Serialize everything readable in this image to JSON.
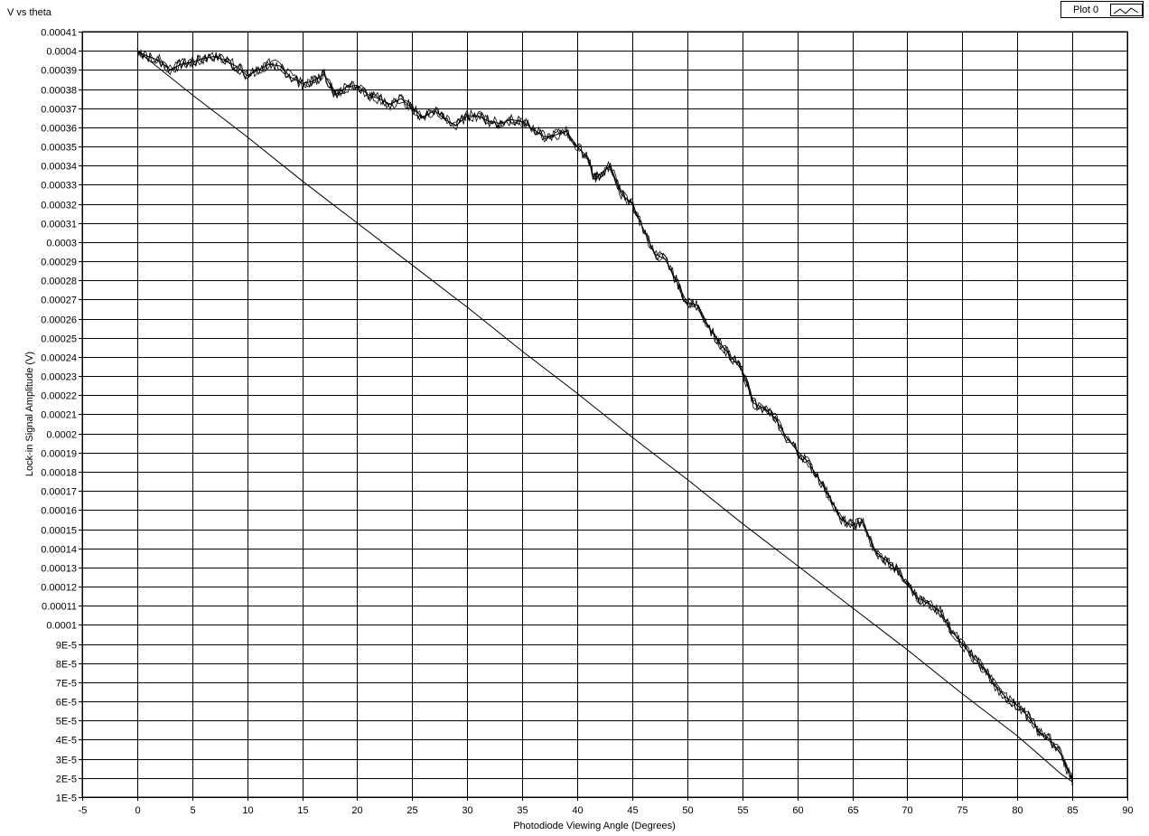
{
  "chart_data": {
    "type": "line",
    "title": "V vs theta",
    "xlabel": "Photodiode Viewing Angle (Degrees)",
    "ylabel": "Lock-in Signal Amplitude (V)",
    "xlim": [
      -5,
      90
    ],
    "ylim": [
      1e-05,
      0.00041
    ],
    "grid": true,
    "legend": {
      "placement": "top-right",
      "entries": [
        "Plot 0"
      ]
    },
    "x_ticks": [
      "-5",
      "0",
      "5",
      "10",
      "15",
      "20",
      "25",
      "30",
      "35",
      "40",
      "45",
      "50",
      "55",
      "60",
      "65",
      "70",
      "75",
      "80",
      "85",
      "90"
    ],
    "y_ticks": [
      "0.00041",
      "0.0004",
      "0.00039",
      "0.00038",
      "0.00037",
      "0.00036",
      "0.00035",
      "0.00034",
      "0.00033",
      "0.00032",
      "0.00031",
      "0.0003",
      "0.00029",
      "0.00028",
      "0.00027",
      "0.00026",
      "0.00025",
      "0.00024",
      "0.00023",
      "0.00022",
      "0.00021",
      "0.0002",
      "0.00019",
      "0.00018",
      "0.00017",
      "0.00016",
      "0.00015",
      "0.00014",
      "0.00013",
      "0.00012",
      "0.00011",
      "0.0001",
      "9E-5",
      "8E-5",
      "7E-5",
      "6E-5",
      "5E-5",
      "4E-5",
      "3E-5",
      "2E-5",
      "1E-5"
    ],
    "series": [
      {
        "x": [
          0,
          1,
          2,
          3,
          4,
          5,
          6,
          7,
          8,
          9,
          10,
          11,
          12,
          13,
          14,
          15,
          16,
          17,
          18,
          19,
          20,
          21,
          22,
          23,
          24,
          25,
          26,
          27,
          28,
          29,
          30,
          31,
          32,
          33,
          34,
          35,
          36,
          37,
          38,
          39,
          40,
          41,
          41.5,
          42,
          43,
          44,
          45,
          46,
          47,
          48,
          49,
          50,
          51,
          52,
          53,
          54,
          55,
          56,
          57,
          58,
          59,
          60,
          61,
          62,
          63,
          64,
          65,
          66,
          67,
          68,
          69,
          70,
          71,
          72,
          73,
          74,
          75,
          76,
          77,
          78,
          79,
          80,
          81,
          82,
          83,
          84,
          84.5,
          85,
          85,
          84,
          80,
          75,
          70,
          65,
          60,
          55,
          50,
          45,
          40,
          35,
          30,
          25,
          20,
          15,
          10,
          5,
          0
        ],
        "y": [
          0.0004,
          0.000397,
          0.000395,
          0.00039,
          0.000393,
          0.000394,
          0.000396,
          0.000397,
          0.000395,
          0.000392,
          0.000387,
          0.00039,
          0.000393,
          0.000392,
          0.000386,
          0.000383,
          0.000384,
          0.000388,
          0.000377,
          0.000381,
          0.000382,
          0.000377,
          0.000375,
          0.000372,
          0.000375,
          0.00037,
          0.000365,
          0.000369,
          0.000364,
          0.000361,
          0.000366,
          0.000366,
          0.000363,
          0.000362,
          0.000364,
          0.000363,
          0.000359,
          0.000355,
          0.000356,
          0.000358,
          0.00035,
          0.000344,
          0.000333,
          0.000335,
          0.00034,
          0.000325,
          0.00032,
          0.000307,
          0.000294,
          0.000291,
          0.00028,
          0.000268,
          0.000267,
          0.000255,
          0.000247,
          0.00024,
          0.000233,
          0.000216,
          0.000213,
          0.000208,
          0.000198,
          0.000191,
          0.000185,
          0.000176,
          0.000166,
          0.000155,
          0.000152,
          0.000154,
          0.000139,
          0.000134,
          0.000129,
          0.000121,
          0.000114,
          0.000111,
          0.000107,
          9.7e-05,
          9e-05,
          8.3e-05,
          7.7e-05,
          6.8e-05,
          6.2e-05,
          5.8e-05,
          5.2e-05,
          4.4e-05,
          4e-05,
          3.2e-05,
          2.5e-05,
          1.9e-05,
          1.8e-05,
          2.2e-05,
          4.2e-05,
          6.4e-05,
          8.7e-05,
          0.000109,
          0.000131,
          0.000153,
          0.000176,
          0.000198,
          0.000221,
          0.000243,
          0.000266,
          0.000288,
          0.00031,
          0.000332,
          0.000355,
          0.000377,
          0.0004
        ]
      }
    ]
  }
}
